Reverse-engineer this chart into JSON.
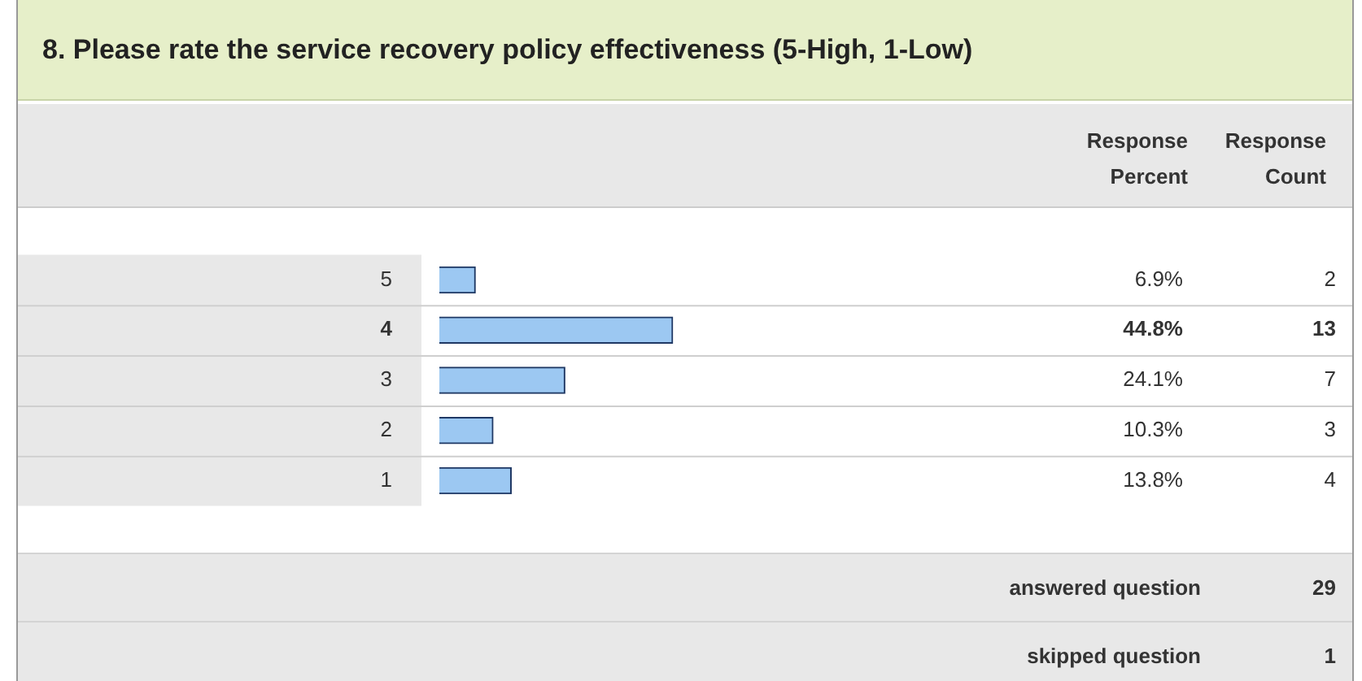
{
  "chart_data": {
    "type": "bar",
    "orientation": "horizontal",
    "title": "8. Please rate the service recovery policy effectiveness (5-High, 1-Low)",
    "categories": [
      "5",
      "4",
      "3",
      "2",
      "1"
    ],
    "values": [
      6.9,
      44.8,
      24.1,
      10.3,
      13.8
    ],
    "value_labels": [
      "6.9%",
      "44.8%",
      "24.1%",
      "10.3%",
      "13.8%"
    ],
    "color": "#9cc8f2",
    "tick_labels": "y",
    "legend": false,
    "annotations": [
      "Response Percent",
      "Response Count",
      "2",
      "13",
      "7",
      "3",
      "4",
      "answered question",
      "29",
      "skipped question",
      "1"
    ]
  }
}
